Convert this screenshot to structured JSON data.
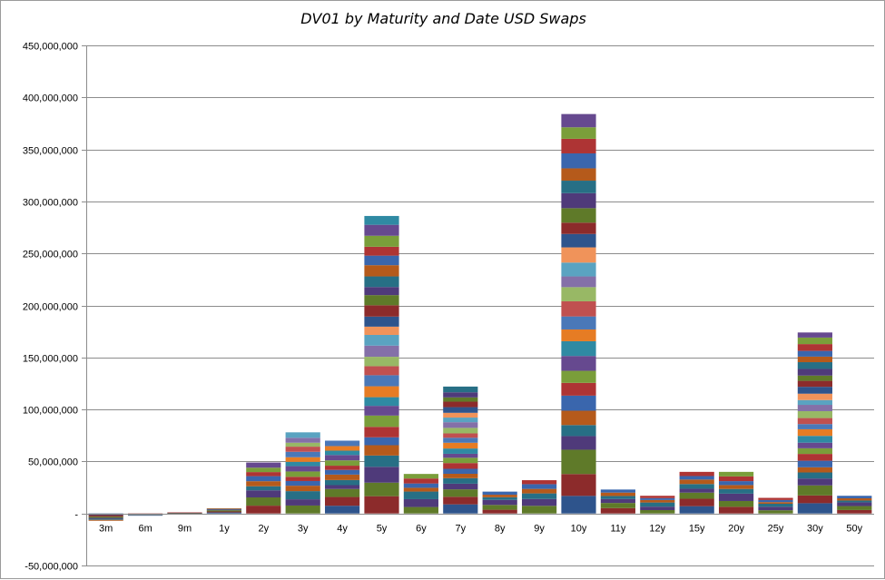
{
  "chart_data": {
    "type": "bar",
    "stacked": true,
    "title": "DV01 by Maturity and Date USD Swaps",
    "xlabel": "",
    "ylabel": "",
    "ylim": [
      -50000000,
      450000000
    ],
    "yticks": [
      -50000000,
      0,
      50000000,
      100000000,
      150000000,
      200000000,
      250000000,
      300000000,
      350000000,
      400000000,
      450000000
    ],
    "ytick_labels": [
      "-50,000,000",
      "-",
      "50,000,000",
      "100,000,000",
      "150,000,000",
      "200,000,000",
      "250,000,000",
      "300,000,000",
      "350,000,000",
      "400,000,000",
      "450,000,000"
    ],
    "grid": "horizontal",
    "legend": "none",
    "categories": [
      "3m",
      "6m",
      "9m",
      "1y",
      "2y",
      "3y",
      "4y",
      "5y",
      "6y",
      "7y",
      "8y",
      "9y",
      "10y",
      "11y",
      "12y",
      "15y",
      "20y",
      "25y",
      "30y",
      "50y"
    ],
    "totals": [
      -7000000,
      -2000000,
      1000000,
      5000000,
      49000000,
      78000000,
      70000000,
      286000000,
      38000000,
      122000000,
      21000000,
      32000000,
      384000000,
      23000000,
      17000000,
      40000000,
      40000000,
      15000000,
      174000000,
      17000000
    ],
    "palette": [
      "#2e548c",
      "#8c2b2b",
      "#5f7a29",
      "#4f3a7a",
      "#276f85",
      "#b55a1b",
      "#3a66ad",
      "#ae3434",
      "#7a9e3a",
      "#66498f",
      "#2f8aa3",
      "#e67c24",
      "#4a78b8",
      "#c05050",
      "#98b865",
      "#8470a8",
      "#5aa3c1",
      "#f0935a"
    ]
  }
}
